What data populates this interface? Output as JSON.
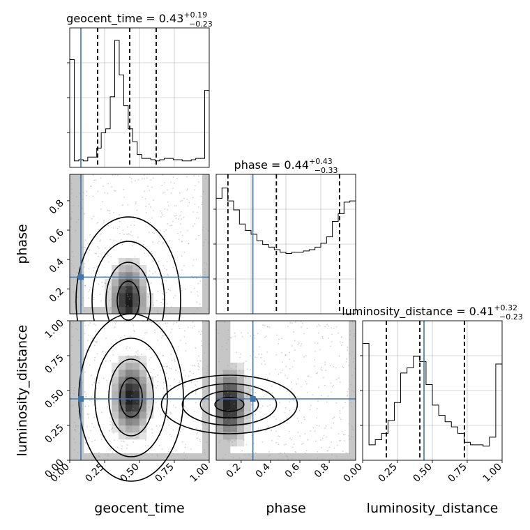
{
  "chart_data": {
    "type": "corner",
    "parameters": [
      "geocent_time",
      "phase",
      "luminosity_distance"
    ],
    "truths": {
      "geocent_time": 0.08,
      "phase": 0.28,
      "luminosity_distance": 0.44
    },
    "colors": {
      "truth": "#3b78b0",
      "hist": "#000000",
      "quantile": "#000000",
      "grid": "#b0b0b0"
    },
    "titles": [
      {
        "name": "geocent_time",
        "median": "0.43",
        "plus": "+0.19",
        "minus": "−0.23"
      },
      {
        "name": "phase",
        "median": "0.44",
        "plus": "+0.43",
        "minus": "−0.33"
      },
      {
        "name": "luminosity_distance",
        "median": "0.41",
        "plus": "+0.32",
        "minus": "−0.23"
      }
    ],
    "xlabels": [
      "geocent_time",
      "phase",
      "luminosity_distance"
    ],
    "ylabels": [
      "phase",
      "luminosity_distance"
    ],
    "ticks": {
      "geocent_time": [
        "0.00",
        "0.25",
        "0.50",
        "0.75",
        "1.00"
      ],
      "phase": [
        "0.2",
        "0.4",
        "0.6",
        "0.8"
      ],
      "luminosity_distance": [
        "0.00",
        "0.25",
        "0.50",
        "0.75",
        "1.00"
      ]
    },
    "ranges": {
      "geocent_time": [
        0,
        1
      ],
      "phase": [
        0.03,
        0.98
      ],
      "luminosity_distance": [
        0,
        1
      ]
    },
    "histograms": {
      "geocent_time": {
        "quantiles": [
          0.2,
          0.43,
          0.62
        ],
        "counts": [
          0.84,
          0.05,
          0.06,
          0.05,
          0.08,
          0.08,
          0.15,
          0.27,
          0.3,
          0.55,
          0.99,
          0.72,
          0.48,
          0.3,
          0.2,
          0.1,
          0.07,
          0.07,
          0.06,
          0.05,
          0.06,
          0.07,
          0.07,
          0.06,
          0.06,
          0.05,
          0.05,
          0.06,
          0.07,
          0.07,
          0.6
        ]
      },
      "phase": {
        "quantiles": [
          0.11,
          0.44,
          0.87
        ],
        "counts": [
          0.9,
          0.98,
          0.88,
          0.81,
          0.7,
          0.65,
          0.62,
          0.57,
          0.54,
          0.52,
          0.5,
          0.48,
          0.47,
          0.48,
          0.48,
          0.49,
          0.5,
          0.52,
          0.55,
          0.6,
          0.72,
          0.78,
          0.87,
          0.88
        ]
      },
      "luminosity_distance": {
        "quantiles": [
          0.17,
          0.41,
          0.73
        ],
        "counts": [
          0.91,
          0.12,
          0.16,
          0.21,
          0.31,
          0.45,
          0.68,
          0.72,
          0.81,
          0.77,
          0.59,
          0.43,
          0.35,
          0.3,
          0.26,
          0.21,
          0.14,
          0.12,
          0.12,
          0.11,
          0.18,
          0.75
        ]
      }
    },
    "density_2d": {
      "phase_vs_geocent_time": {
        "peak_x": 0.42,
        "peak_y": 0.12
      },
      "luminosity_distance_vs_geocent_time": {
        "peak_x": 0.44,
        "peak_y": 0.45
      },
      "luminosity_distance_vs_phase": {
        "peak_x": 0.12,
        "peak_y": 0.4
      }
    }
  }
}
